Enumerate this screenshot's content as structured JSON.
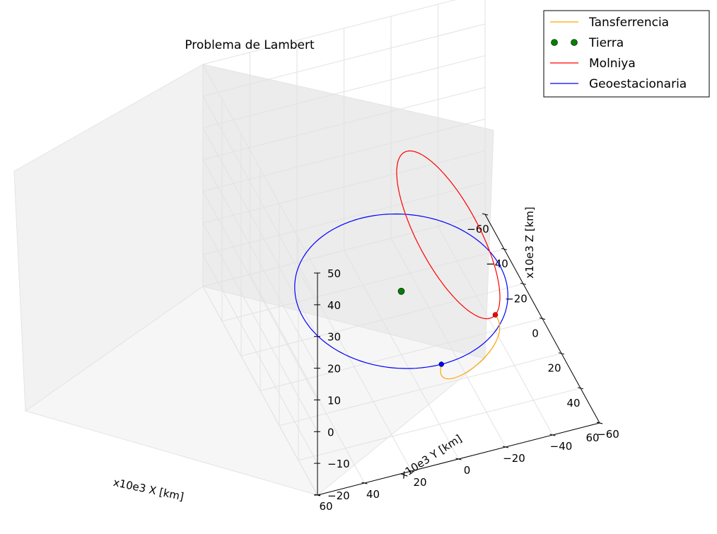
{
  "chart_data": {
    "type": "line3d",
    "title": "Problema de  Lambert",
    "xlabel": "x10e3 X [km]",
    "ylabel": "x10e3 Y [km]",
    "zlabel": "x10e3 Z [km]",
    "xlim": [
      -60,
      60
    ],
    "ylim": [
      -60,
      60
    ],
    "zlim": [
      -20,
      50
    ],
    "x_ticks": [
      "−60",
      "−40",
      "−20",
      "0",
      "20",
      "40",
      "60"
    ],
    "y_ticks": [
      "−60",
      "−40",
      "−20",
      "0",
      "20",
      "40",
      "60"
    ],
    "z_ticks": [
      "−20",
      "−10",
      "0",
      "10",
      "20",
      "30",
      "40",
      "50"
    ],
    "grid": true,
    "legend_position": "top-right, outside plot",
    "legend": [
      {
        "name": "Tansferrencia",
        "color": "#ffa500",
        "marker": "line"
      },
      {
        "name": "Tierra",
        "color": "#008000",
        "marker": "dot"
      },
      {
        "name": "Molniya",
        "color": "#ff0000",
        "marker": "line"
      },
      {
        "name": "Geoestacionaria",
        "color": "#0000ff",
        "marker": "line"
      }
    ],
    "series": [
      {
        "name": "Geoestacionaria",
        "kind": "circle",
        "radius": 42,
        "z": 0,
        "color": "#0000ff"
      },
      {
        "name": "Molniya",
        "kind": "ellipse",
        "perigee": [
          0,
          -40,
          -15
        ],
        "apogee": [
          0,
          0,
          43
        ],
        "color": "#ff0000"
      },
      {
        "name": "Tansferrencia",
        "kind": "arc",
        "from": [
          0,
          -40,
          -15
        ],
        "to": [
          42,
          0,
          0
        ],
        "color": "#ffa500"
      },
      {
        "name": "Tierra",
        "kind": "point",
        "point": [
          0,
          0,
          0
        ],
        "color": "#008000"
      }
    ]
  }
}
